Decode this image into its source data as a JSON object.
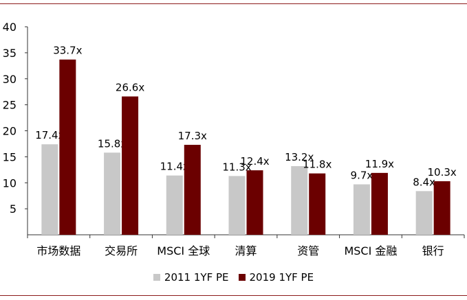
{
  "chart_data": {
    "type": "bar",
    "title": "",
    "xlabel": "",
    "ylabel": "",
    "ylim": [
      0,
      40
    ],
    "yticks": [
      5,
      10,
      15,
      20,
      25,
      30,
      35,
      40
    ],
    "categories": [
      "市场数据",
      "交易所",
      "MSCI 全球",
      "清算",
      "资管",
      "MSCI 金融",
      "银行"
    ],
    "series": [
      {
        "name": "2011 1YF PE",
        "color": "#c8c8c8",
        "values": [
          17.4,
          15.8,
          11.4,
          11.3,
          13.2,
          9.7,
          8.4
        ],
        "labels": [
          "17.4x",
          "15.8x",
          "11.4x",
          "11.3x",
          "13.2x",
          "9.7x",
          "8.4x"
        ]
      },
      {
        "name": "2019 1YF PE",
        "color": "#6b0000",
        "values": [
          33.7,
          26.6,
          17.3,
          12.4,
          11.8,
          11.9,
          10.3
        ],
        "labels": [
          "33.7x",
          "26.6x",
          "17.3x",
          "12.4x",
          "11.8x",
          "11.9x",
          "10.3x"
        ]
      }
    ],
    "legend_position": "bottom"
  },
  "legend": {
    "items": [
      {
        "label": "2011 1YF PE",
        "color": "#c8c8c8"
      },
      {
        "label": "2019 1YF PE",
        "color": "#6b0000"
      }
    ]
  }
}
